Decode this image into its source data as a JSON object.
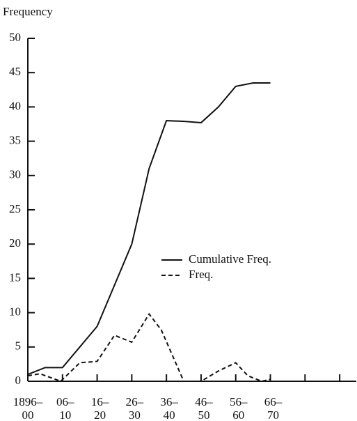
{
  "chart_data": {
    "type": "line",
    "ylabel": "Frequency",
    "series": [
      {
        "name": "Cumulative Freq.",
        "color": "#111",
        "dash": "none",
        "x": [
          1900,
          1905,
          1910,
          1915,
          1920,
          1925,
          1930,
          1935,
          1940,
          1945,
          1950,
          1955,
          1960,
          1965,
          1970
        ],
        "values": [
          1,
          2,
          2,
          5,
          8,
          14,
          20,
          31,
          38,
          37.9,
          37.7,
          40,
          43,
          43.5,
          43.5
        ]
      },
      {
        "name": "Freq.",
        "color": "#111",
        "dash": "6 4",
        "x": [
          1900,
          1903.5,
          1909.5,
          1915,
          1920,
          1925,
          1930,
          1935,
          1938.5,
          1945,
          1950,
          1955,
          1960,
          1963.5,
          1967.5,
          1970
        ],
        "values": [
          0.8,
          1.1,
          0,
          2.7,
          2.9,
          6.7,
          5.7,
          9.8,
          7.5,
          0,
          0,
          1.5,
          2.7,
          0.8,
          0,
          0.3
        ]
      }
    ],
    "xlim": [
      1900,
      1995
    ],
    "xticks": [
      {
        "value": 1900,
        "label": [
          "1896–",
          "00"
        ]
      },
      {
        "value": 1910,
        "label": [
          "06–",
          "10"
        ]
      },
      {
        "value": 1920,
        "label": [
          "16–",
          "20"
        ]
      },
      {
        "value": 1930,
        "label": [
          "26–",
          "30"
        ]
      },
      {
        "value": 1940,
        "label": [
          "36–",
          "40"
        ]
      },
      {
        "value": 1950,
        "label": [
          "46–",
          "50"
        ]
      },
      {
        "value": 1960,
        "label": [
          "56–",
          "60"
        ]
      },
      {
        "value": 1970,
        "label": [
          "66–",
          "70"
        ]
      },
      {
        "value": 1980,
        "label": null
      },
      {
        "value": 1990,
        "label": null
      }
    ],
    "ylim": [
      0,
      50
    ],
    "yticks": [
      0,
      5,
      10,
      15,
      20,
      25,
      30,
      35,
      40,
      45,
      50
    ]
  }
}
